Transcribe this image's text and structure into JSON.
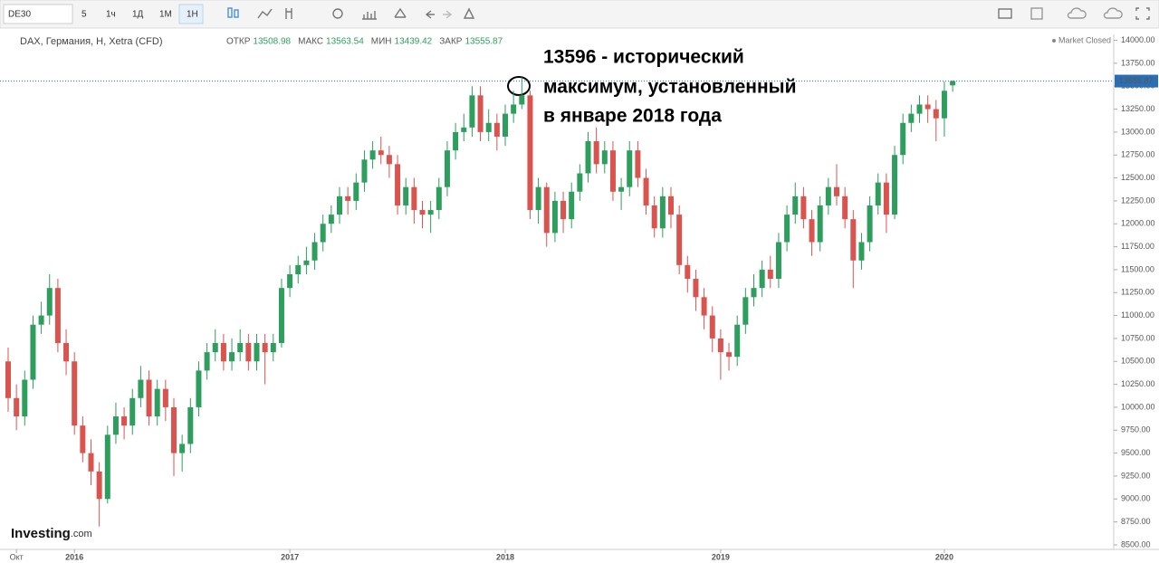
{
  "toolbar": {
    "symbol": "DE30",
    "intervals": [
      "5",
      "1ч",
      "1Д",
      "1М",
      "1Н"
    ]
  },
  "logo": [
    "Investing",
    ".com"
  ],
  "chart_data": {
    "type": "candlestick",
    "title": "DAX, Германия, H, Xetra (CFD)",
    "status": "Market Closed",
    "annotation": [
      "13596 - исторический",
      "максимум, установленный",
      "в январе 2018 года"
    ],
    "categories": [
      null,
      "Окт",
      null,
      null,
      null,
      null,
      null,
      null,
      "2016",
      null,
      null,
      null,
      null,
      null,
      null,
      null,
      null,
      null,
      null,
      null,
      null,
      null,
      null,
      null,
      null,
      null,
      null,
      null,
      null,
      null,
      null,
      null,
      null,
      null,
      "2017",
      null,
      null,
      null,
      null,
      null,
      null,
      null,
      null,
      null,
      null,
      null,
      null,
      null,
      null,
      null,
      null,
      null,
      null,
      null,
      null,
      null,
      null,
      null,
      null,
      null,
      "2018",
      null,
      null,
      null,
      null,
      null,
      null,
      null,
      null,
      null,
      null,
      null,
      null,
      null,
      null,
      null,
      null,
      null,
      null,
      null,
      null,
      null,
      null,
      null,
      null,
      null,
      "2019",
      null,
      null,
      null,
      null,
      null,
      null,
      null,
      null,
      null,
      null,
      null,
      null,
      null,
      null,
      null,
      null,
      null,
      null,
      null,
      null,
      null,
      null,
      null,
      null,
      null,
      null,
      "2020",
      null
    ],
    "up_color": "#2e9e5e",
    "down_color": "#d9544f",
    "series": [
      {
        "name": "ОТКР",
        "values": [
          10500,
          10100,
          9900,
          10300,
          10900,
          11000,
          11300,
          10700,
          10500,
          9800,
          9500,
          9300,
          9000,
          9700,
          9900,
          9800,
          10100,
          10300,
          9900,
          10200,
          10000,
          9500,
          9600,
          10000,
          10400,
          10600,
          10700,
          10500,
          10600,
          10700,
          10500,
          10700,
          10600,
          10700,
          11300,
          11450,
          11550,
          11600,
          11800,
          12000,
          12100,
          12300,
          12250,
          12450,
          12700,
          12800,
          12750,
          12650,
          12200,
          12400,
          12150,
          12100,
          12150,
          12400,
          12800,
          13000,
          13050,
          13400,
          13000,
          13100,
          12950,
          13200,
          13300,
          13400,
          12150,
          12400,
          11900,
          12250,
          12050,
          12350,
          12550,
          12900,
          12650,
          12800,
          12350,
          12400,
          12800,
          12500,
          12200,
          11950,
          12300,
          12100,
          11550,
          11400,
          11200,
          11000,
          10750,
          10600,
          10550,
          10900,
          11200,
          11300,
          11500,
          11400,
          11800,
          12100,
          12300,
          12050,
          11800,
          12200,
          12400,
          12300,
          12050,
          11600,
          11800,
          12200,
          12450,
          12100,
          12750,
          13100,
          13200,
          13300,
          13250,
          13150,
          13508.98
        ]
      },
      {
        "name": "МАКС",
        "values": [
          10650,
          10250,
          10400,
          11000,
          11150,
          11450,
          11400,
          10850,
          10600,
          9900,
          9650,
          9400,
          9800,
          10050,
          10000,
          10200,
          10450,
          10400,
          10300,
          10300,
          10100,
          9700,
          10100,
          10500,
          10700,
          10850,
          10800,
          10750,
          10850,
          10800,
          10800,
          10800,
          10800,
          11400,
          11550,
          11650,
          11750,
          11900,
          12100,
          12200,
          12400,
          12400,
          12550,
          12800,
          12900,
          12950,
          12850,
          12750,
          12500,
          12500,
          12250,
          12250,
          12500,
          12900,
          13100,
          13200,
          13500,
          13500,
          13250,
          13200,
          13300,
          13450,
          13596,
          13450,
          12500,
          12450,
          12350,
          12350,
          12450,
          12650,
          13000,
          13050,
          12900,
          12900,
          12500,
          12900,
          12900,
          12600,
          12300,
          12400,
          12400,
          12200,
          11650,
          11500,
          11300,
          11100,
          10850,
          10700,
          11000,
          11300,
          11450,
          11600,
          11650,
          11900,
          12200,
          12450,
          12400,
          12150,
          12300,
          12500,
          12650,
          12400,
          12150,
          11900,
          12300,
          12550,
          12550,
          12850,
          13200,
          13300,
          13400,
          13400,
          13350,
          13550,
          13563.54
        ]
      },
      {
        "name": "МИН",
        "values": [
          9950,
          9750,
          9800,
          10200,
          10800,
          10900,
          10600,
          10350,
          9700,
          9400,
          9150,
          8700,
          8950,
          9600,
          9650,
          9700,
          10000,
          9800,
          9800,
          9850,
          9250,
          9300,
          9500,
          9900,
          10300,
          10500,
          10400,
          10400,
          10500,
          10400,
          10400,
          10250,
          10500,
          10650,
          11200,
          11350,
          11450,
          11500,
          11700,
          11900,
          12000,
          12100,
          12150,
          12350,
          12600,
          12650,
          12500,
          12100,
          12100,
          12000,
          11950,
          11900,
          12050,
          12300,
          12700,
          12900,
          12950,
          12900,
          12900,
          12800,
          12850,
          13100,
          13250,
          12050,
          12000,
          11750,
          11800,
          11900,
          11950,
          12250,
          12450,
          12550,
          12550,
          12250,
          12150,
          12300,
          12400,
          12100,
          11850,
          11850,
          11950,
          11450,
          11250,
          11050,
          10850,
          10600,
          10300,
          10400,
          10450,
          10800,
          11100,
          11200,
          11300,
          11300,
          11700,
          12000,
          11950,
          11650,
          11700,
          12100,
          12200,
          11950,
          11300,
          11500,
          11700,
          12100,
          11900,
          12050,
          12650,
          13000,
          13100,
          13100,
          12900,
          12950,
          13439.42
        ]
      },
      {
        "name": "ЗАКР",
        "values": [
          10100,
          9900,
          10300,
          10900,
          11000,
          11300,
          10700,
          10500,
          9800,
          9500,
          9300,
          9000,
          9700,
          9900,
          9800,
          10100,
          10300,
          9900,
          10200,
          10000,
          9500,
          9600,
          10000,
          10400,
          10600,
          10700,
          10500,
          10600,
          10700,
          10500,
          10700,
          10600,
          10700,
          11300,
          11450,
          11550,
          11600,
          11800,
          12000,
          12100,
          12300,
          12250,
          12450,
          12700,
          12800,
          12750,
          12650,
          12200,
          12400,
          12150,
          12100,
          12150,
          12400,
          12800,
          13000,
          13050,
          13400,
          13000,
          13100,
          12950,
          13200,
          13300,
          13400,
          12150,
          12400,
          11900,
          12250,
          12050,
          12350,
          12550,
          12900,
          12650,
          12800,
          12350,
          12400,
          12800,
          12500,
          12200,
          11950,
          12300,
          12100,
          11550,
          11400,
          11200,
          11000,
          10750,
          10600,
          10550,
          10900,
          11200,
          11300,
          11500,
          11400,
          11800,
          12100,
          12300,
          12050,
          11800,
          12200,
          12400,
          12300,
          12050,
          11600,
          11800,
          12200,
          12450,
          12100,
          12750,
          13100,
          13200,
          13300,
          13250,
          13150,
          13450,
          13555.87
        ]
      }
    ],
    "ylim": [
      8450,
      14045
    ],
    "yticks": [
      {
        "value": 8500,
        "label": "8500.00"
      },
      {
        "value": 8750,
        "label": "8750.00"
      },
      {
        "value": 9000,
        "label": "9000.00"
      },
      {
        "value": 9250,
        "label": "9250.00"
      },
      {
        "value": 9500,
        "label": "9500.00"
      },
      {
        "value": 9750,
        "label": "9750.00"
      },
      {
        "value": 10000,
        "label": "10000.00"
      },
      {
        "value": 10250,
        "label": "10250.00"
      },
      {
        "value": 10500,
        "label": "10500.00"
      },
      {
        "value": 10750,
        "label": "10750.00"
      },
      {
        "value": 11000,
        "label": "11000.00"
      },
      {
        "value": 11250,
        "label": "11250.00"
      },
      {
        "value": 11500,
        "label": "11500.00"
      },
      {
        "value": 11750,
        "label": "11750.00"
      },
      {
        "value": 12000,
        "label": "12000.00"
      },
      {
        "value": 12250,
        "label": "12250.00"
      },
      {
        "value": 12500,
        "label": "12500.00"
      },
      {
        "value": 12750,
        "label": "12750.00"
      },
      {
        "value": 13000,
        "label": "13000.00"
      },
      {
        "value": 13250,
        "label": "13250.00"
      },
      {
        "value": 13500,
        "label": "13500.00"
      },
      {
        "value": 13750,
        "label": "13750.00"
      },
      {
        "value": 14000,
        "label": "14000.00"
      }
    ],
    "grid": false
  }
}
